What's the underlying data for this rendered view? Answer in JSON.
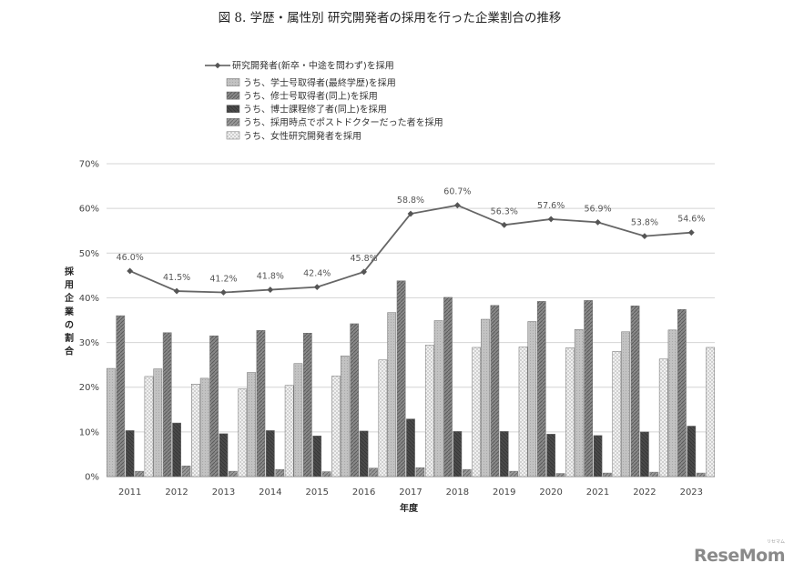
{
  "title": "図 8. 学歴・属性別 研究開発者の採用を行った企業割合の推移",
  "brand": {
    "text": "ReseMom",
    "ruby": "リセマム"
  },
  "chart_data": {
    "type": "bar",
    "categories": [
      "2011",
      "2012",
      "2013",
      "2014",
      "2015",
      "2016",
      "2017",
      "2018",
      "2019",
      "2020",
      "2021",
      "2022",
      "2023"
    ],
    "xlabel": "年度",
    "ylabel": "採用企業の割合",
    "ylim": [
      0,
      70
    ],
    "yticks": [
      "0%",
      "10%",
      "20%",
      "30%",
      "40%",
      "50%",
      "60%",
      "70%"
    ],
    "grid": true,
    "legend_position": "top-left",
    "line_series": {
      "name": "研究開発者(新卒・中途を問わず)を採用",
      "values": [
        46.0,
        41.5,
        41.2,
        41.8,
        42.4,
        45.8,
        58.8,
        60.7,
        56.3,
        57.6,
        56.9,
        53.8,
        54.6
      ],
      "labels": [
        "46.0%",
        "41.5%",
        "41.2%",
        "41.8%",
        "42.4%",
        "45.8%",
        "58.8%",
        "60.7%",
        "56.3%",
        "57.6%",
        "56.9%",
        "53.8%",
        "54.6%"
      ],
      "color": "#666666"
    },
    "series": [
      {
        "name": "うち、学士号取得者(最終学歴)を採用",
        "values": [
          24.2,
          24.1,
          22.0,
          23.3,
          25.3,
          27.0,
          36.7,
          34.9,
          35.2,
          34.7,
          32.9,
          32.4,
          32.8
        ],
        "color": "#bdbdbd"
      },
      {
        "name": "うち、修士号取得者(同上)を採用",
        "values": [
          36.0,
          32.2,
          31.5,
          32.7,
          32.1,
          34.2,
          43.8,
          40.1,
          38.3,
          39.2,
          39.4,
          38.2,
          37.4
        ],
        "color": "#7e7e7e"
      },
      {
        "name": "うち、博士課程修了者(同上)を採用",
        "values": [
          10.3,
          12.0,
          9.6,
          10.3,
          9.1,
          10.2,
          12.9,
          10.1,
          10.1,
          9.5,
          9.2,
          10.0,
          11.3
        ],
        "color": "#474747"
      },
      {
        "name": "うち、採用時点でポストドクターだった者を採用",
        "values": [
          1.2,
          2.4,
          1.2,
          1.6,
          1.1,
          1.9,
          2.0,
          1.6,
          1.2,
          0.7,
          0.8,
          1.0,
          0.8
        ],
        "color": "#8c8c8c"
      },
      {
        "name": "うち、女性研究開発者を採用",
        "values": [
          22.4,
          20.7,
          19.6,
          20.4,
          22.5,
          26.1,
          29.4,
          28.9,
          29.0,
          28.8,
          28.0,
          26.3,
          28.9
        ],
        "color": "#f2f2f2"
      }
    ]
  }
}
